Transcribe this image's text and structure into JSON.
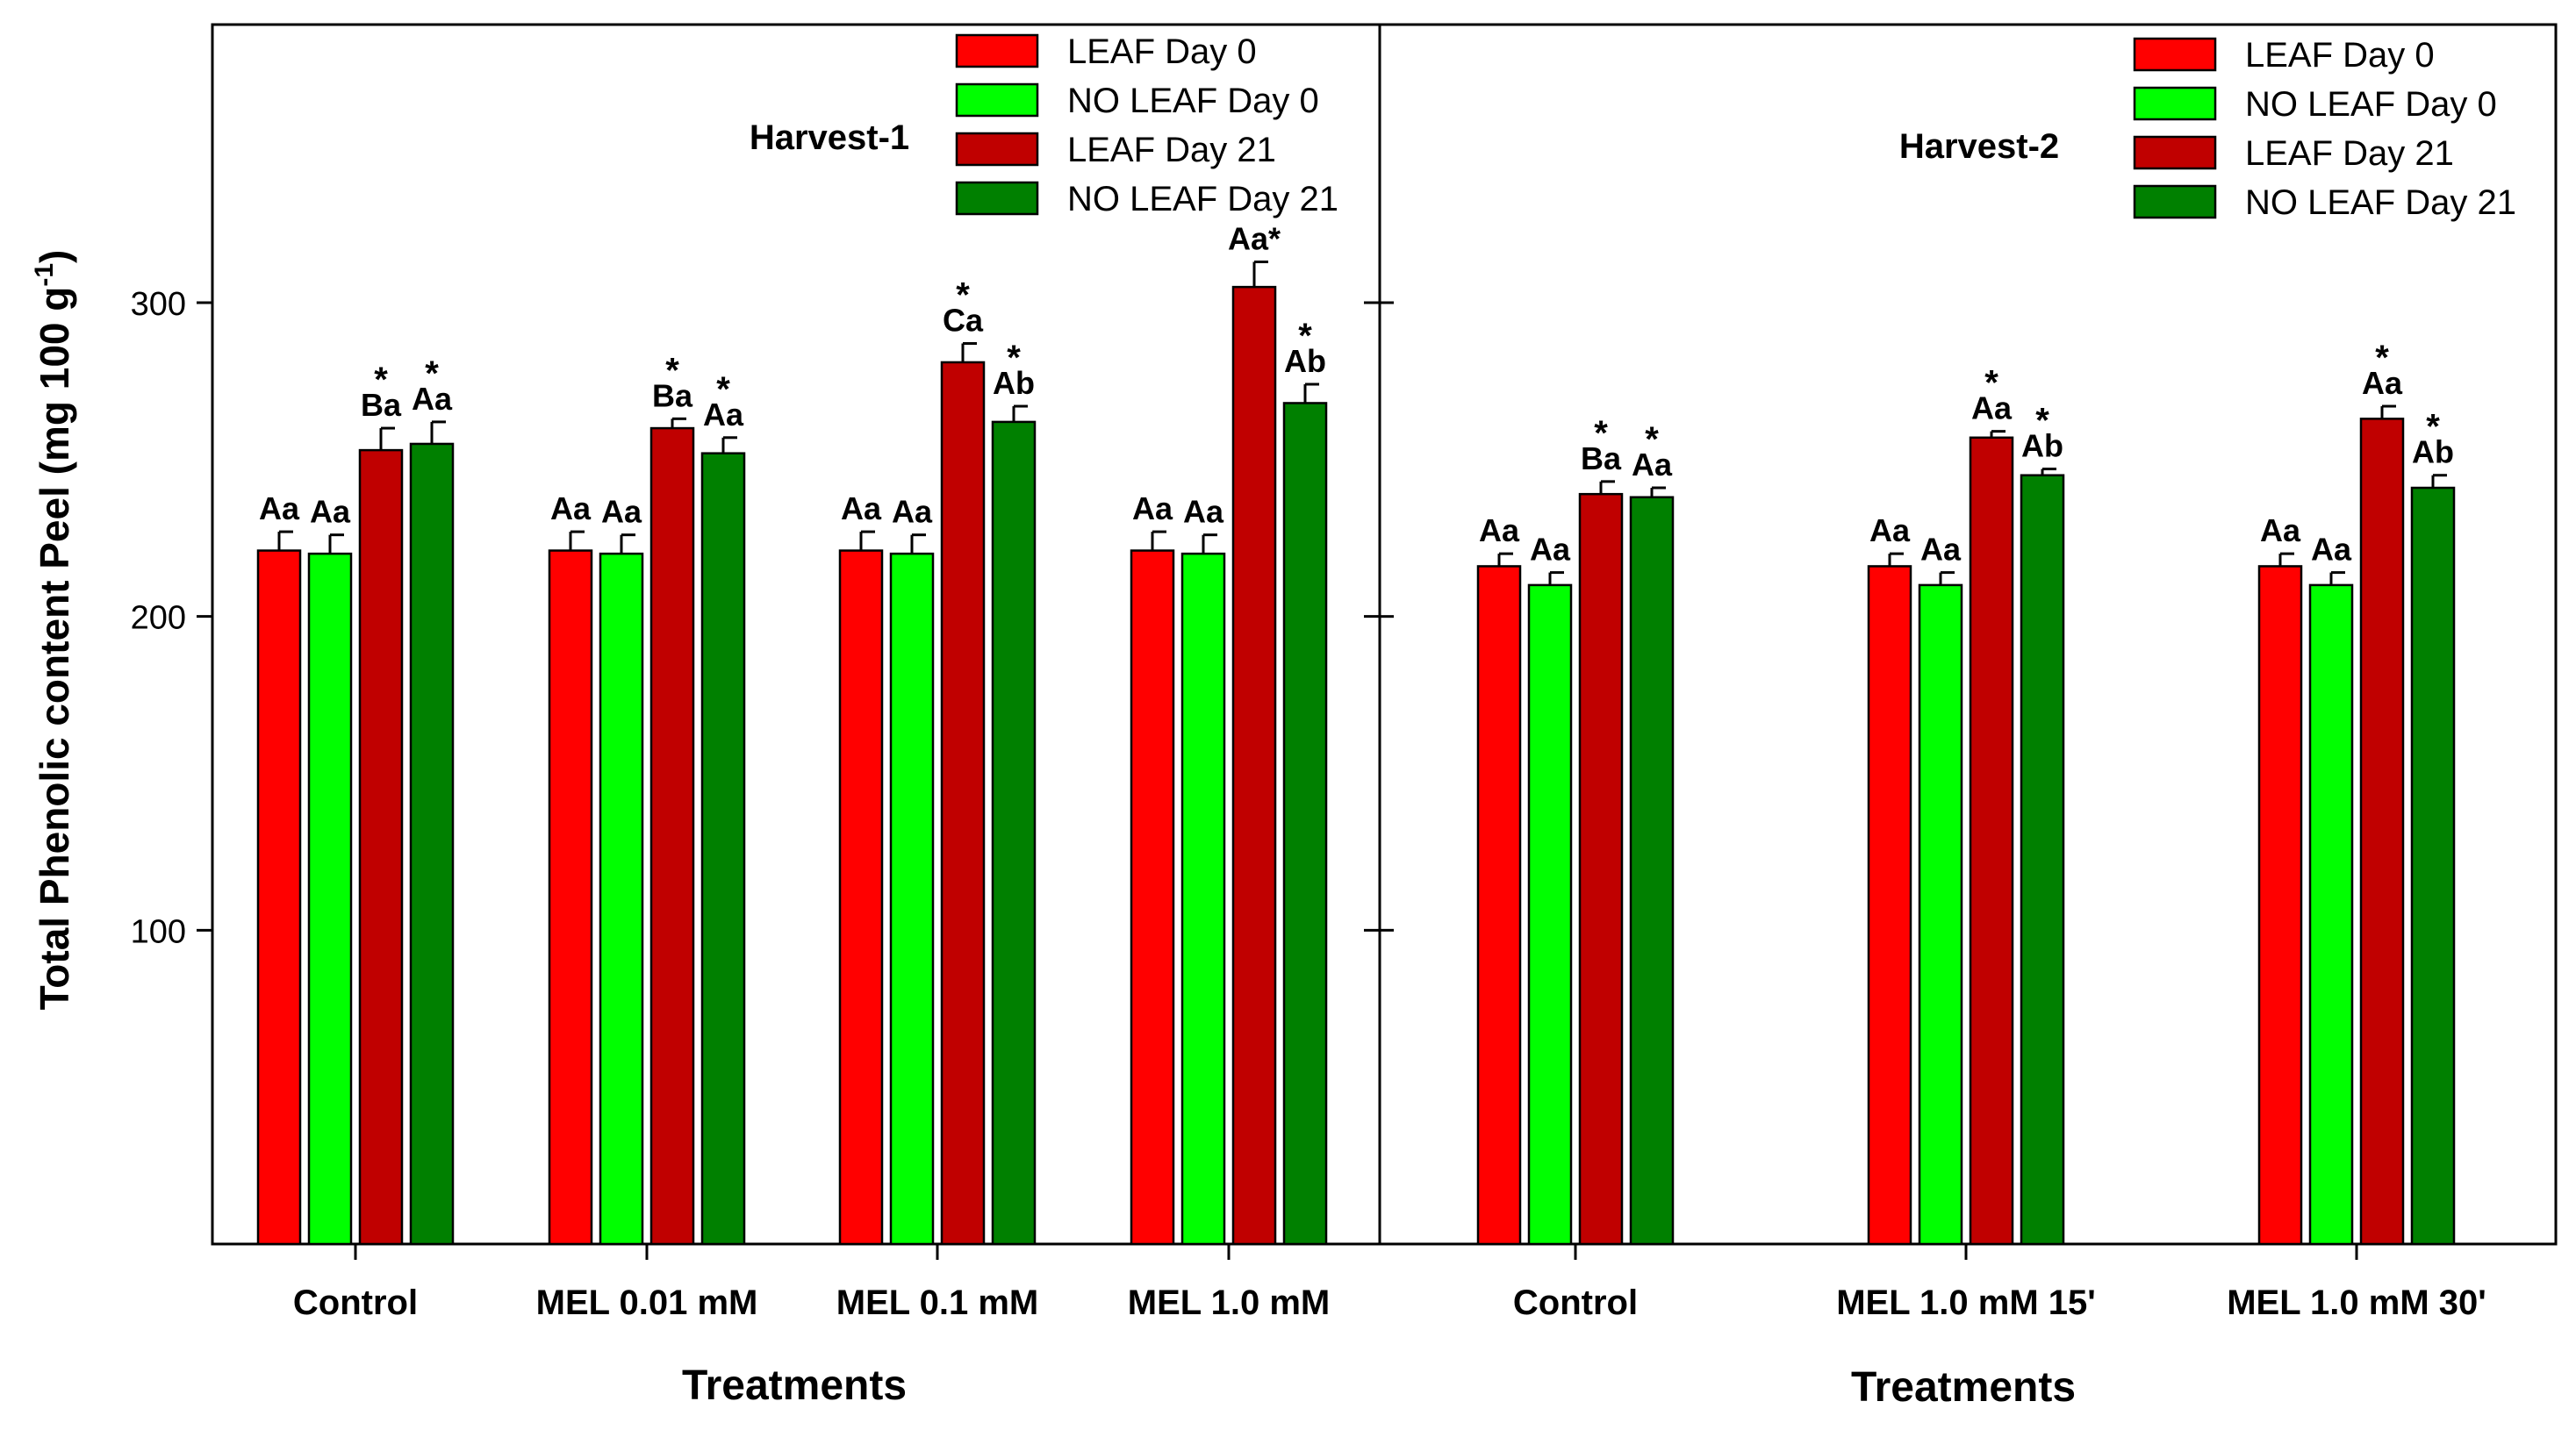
{
  "ylabel": "Total Phenolic content Peel (mg 100 g",
  "ylabel_sup": "-1",
  "ylabel_close": ")",
  "colors": {
    "leaf_day0": "#ff0000",
    "noleaf_day0": "#00ff00",
    "leaf_day21": "#c00000",
    "noleaf_day21": "#008000",
    "axis": "#000000"
  },
  "chart_data": [
    {
      "type": "bar",
      "title": "Harvest-1",
      "xlabel": "Treatments",
      "ylim": [
        0,
        380
      ],
      "yticks": [
        100,
        200,
        300
      ],
      "legend_position": "top-right",
      "categories": [
        "Control",
        "MEL 0.01 mM",
        "MEL 0.1 mM",
        "MEL 1.0 mM"
      ],
      "series": [
        {
          "name": "LEAF Day 0",
          "color_key": "leaf_day0",
          "values": [
            221,
            221,
            221,
            221
          ],
          "errors": [
            6,
            6,
            6,
            6
          ],
          "labels": [
            "Aa",
            "Aa",
            "Aa",
            "Aa"
          ],
          "stars": [
            false,
            false,
            false,
            false
          ]
        },
        {
          "name": "NO LEAF Day 0",
          "color_key": "noleaf_day0",
          "values": [
            220,
            220,
            220,
            220
          ],
          "errors": [
            6,
            6,
            6,
            6
          ],
          "labels": [
            "Aa",
            "Aa",
            "Aa",
            "Aa"
          ],
          "stars": [
            false,
            false,
            false,
            false
          ]
        },
        {
          "name": "LEAF Day 21",
          "color_key": "leaf_day21",
          "values": [
            253,
            260,
            281,
            305
          ],
          "errors": [
            7,
            3,
            6,
            8
          ],
          "labels": [
            "Ba",
            "Ba",
            "Ca",
            "Aa*"
          ],
          "stars": [
            true,
            true,
            true,
            false
          ]
        },
        {
          "name": "NO LEAF Day 21",
          "color_key": "noleaf_day21",
          "values": [
            255,
            252,
            262,
            268
          ],
          "errors": [
            7,
            5,
            5,
            6
          ],
          "labels": [
            "Aa",
            "Aa",
            "Ab",
            "Ab"
          ],
          "stars": [
            true,
            true,
            true,
            true
          ]
        }
      ]
    },
    {
      "type": "bar",
      "title": "Harvest-2",
      "xlabel": "Treatments",
      "ylim": [
        0,
        380
      ],
      "yticks": [
        100,
        200,
        300
      ],
      "legend_position": "top-right",
      "categories": [
        "Control",
        "MEL 1.0  mM 15'",
        "MEL 1.0 mM 30'"
      ],
      "series": [
        {
          "name": "LEAF Day 0",
          "color_key": "leaf_day0",
          "values": [
            216,
            216,
            216
          ],
          "errors": [
            4,
            4,
            4
          ],
          "labels": [
            "Aa",
            "Aa",
            "Aa"
          ],
          "stars": [
            false,
            false,
            false
          ]
        },
        {
          "name": "NO LEAF Day 0",
          "color_key": "noleaf_day0",
          "values": [
            210,
            210,
            210
          ],
          "errors": [
            4,
            4,
            4
          ],
          "labels": [
            "Aa",
            "Aa",
            "Aa"
          ],
          "stars": [
            false,
            false,
            false
          ]
        },
        {
          "name": "LEAF Day 21",
          "color_key": "leaf_day21",
          "values": [
            239,
            257,
            263
          ],
          "errors": [
            4,
            2,
            4
          ],
          "labels": [
            "Ba",
            "Aa",
            "Aa"
          ],
          "stars": [
            true,
            true,
            true
          ]
        },
        {
          "name": "NO LEAF Day 21",
          "color_key": "noleaf_day21",
          "values": [
            238,
            245,
            241
          ],
          "errors": [
            3,
            2,
            4
          ],
          "labels": [
            "Aa",
            "Ab",
            "Ab"
          ],
          "stars": [
            true,
            true,
            true
          ]
        }
      ]
    }
  ]
}
